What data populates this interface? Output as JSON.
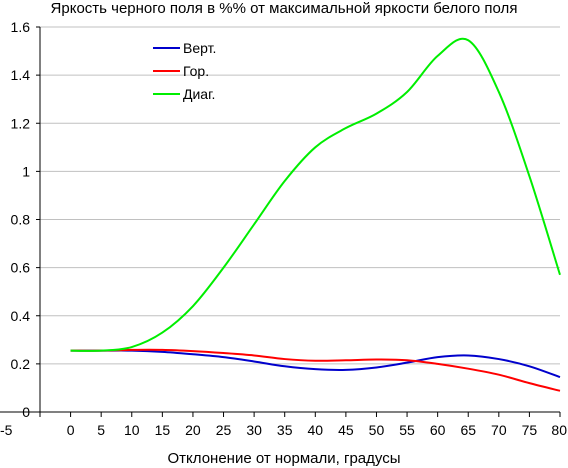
{
  "chart_data": {
    "type": "line",
    "title": "Яркость черного поля в %% от максимальной яркости белого поля",
    "xlabel": "Отклонение от нормали, градусы",
    "ylabel": "",
    "xlim": [
      -5,
      80
    ],
    "ylim": [
      0,
      1.6
    ],
    "x_ticks": [
      "-5",
      "0",
      "5",
      "10",
      "15",
      "20",
      "25",
      "30",
      "35",
      "40",
      "45",
      "50",
      "55",
      "60",
      "65",
      "70",
      "75",
      "80"
    ],
    "y_ticks": [
      "0",
      "0.2",
      "0.4",
      "0.6",
      "0.8",
      "1",
      "1.2",
      "1.4",
      "1.6"
    ],
    "grid": "horizontal",
    "legend_position": "top-left",
    "x": [
      -5,
      0,
      5,
      10,
      15,
      20,
      25,
      30,
      35,
      40,
      45,
      50,
      55,
      60,
      65,
      70,
      75,
      80
    ],
    "series": [
      {
        "name": "Верт.",
        "color": "#0000cc",
        "values": [
          0.255,
          0.255,
          0.255,
          0.255,
          0.25,
          0.24,
          0.228,
          0.21,
          0.19,
          0.178,
          0.175,
          0.185,
          0.205,
          0.228,
          0.235,
          0.22,
          0.19,
          0.145
        ]
      },
      {
        "name": "Гор.",
        "color": "#ff0000",
        "values": [
          0.255,
          0.255,
          0.255,
          0.258,
          0.258,
          0.253,
          0.245,
          0.235,
          0.22,
          0.213,
          0.215,
          0.218,
          0.215,
          0.2,
          0.18,
          0.155,
          0.12,
          0.088
        ]
      },
      {
        "name": "Диаг.",
        "color": "#00ee00",
        "values": [
          0.255,
          0.255,
          0.255,
          0.27,
          0.33,
          0.44,
          0.6,
          0.78,
          0.96,
          1.1,
          1.18,
          1.24,
          1.33,
          1.48,
          1.545,
          1.33,
          0.98,
          0.57
        ]
      }
    ]
  }
}
